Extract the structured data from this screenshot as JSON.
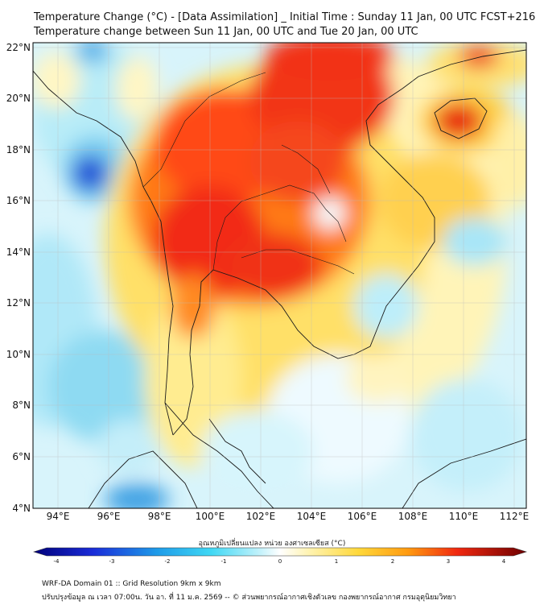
{
  "header": {
    "title_line1": "Temperature Change (°C) - [Data Assimilation] _ Initial Time : Sunday 11 Jan, 00 UTC FCST+216",
    "title_line2": "Temperature change between Sun 11 Jan, 00 UTC and Tue 20 Jan, 00 UTC"
  },
  "map": {
    "lon_ticks": [
      "94°E",
      "96°E",
      "98°E",
      "100°E",
      "102°E",
      "104°E",
      "106°E",
      "108°E",
      "110°E",
      "112°E"
    ],
    "lat_ticks": [
      "22°N",
      "20°N",
      "18°N",
      "16°N",
      "14°N",
      "12°N",
      "10°N",
      "8°N",
      "6°N",
      "4°N"
    ]
  },
  "colorbar": {
    "title": "อุณหภูมิเปลี่ยนแปลง หน่วย องศาเซลเซียส (°C)",
    "ticks": [
      "-4",
      "-3",
      "-2",
      "-1",
      "0",
      "1",
      "2",
      "3",
      "4"
    ]
  },
  "footer": {
    "line1": "WRF-DA Domain 01 :: Grid Resolution 9km x 9km",
    "line2": "ปรับปรุงข้อมูล ณ เวลา 07:00น. วัน อา. ที่ 11 ม.ค. 2569 -- © ส่วนพยากรณ์อากาศเชิงตัวเลข กองพยากรณ์อากาศ กรมอุตุนิยมวิทยา"
  },
  "colors": {
    "warm_peak": "#e0140a",
    "cold_peak": "#0a2ad0",
    "neutral": "#ffffff"
  }
}
